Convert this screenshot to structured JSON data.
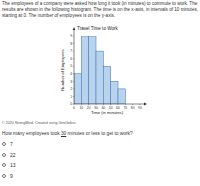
{
  "intro": "The employees of a company were asked how long it took (in minutes) to commute to work. The results are shown in the following histogram. The time is on the x-axis, in intervals of 10 minutes, starting at 0. The number of employees is on the y-axis.",
  "chart_data": {
    "type": "histogram",
    "title": "Travel Time to Work",
    "x_label": "Time (in minutes)",
    "y_label": "Number of Employees",
    "bins": [
      0,
      10,
      20,
      30,
      40,
      50,
      60,
      70
    ],
    "values": [
      4,
      9,
      9,
      7,
      5,
      3,
      2
    ],
    "color": "#b7d3ee",
    "xlim": [
      0,
      90
    ],
    "xticks": [
      0,
      10,
      20,
      30,
      40,
      50,
      60,
      70,
      80,
      90
    ],
    "ylim": [
      0,
      9
    ],
    "yticks": [
      0,
      1,
      2,
      3,
      4,
      5,
      6,
      7,
      8,
      9
    ],
    "grid": false
  },
  "credit": "© 2020 StrongMind. Created using GeoGebra.",
  "question": [
    "How many employees took ",
    "30",
    " minutes or less to get to work?"
  ],
  "options": [
    "7",
    "22",
    "13",
    "9"
  ]
}
